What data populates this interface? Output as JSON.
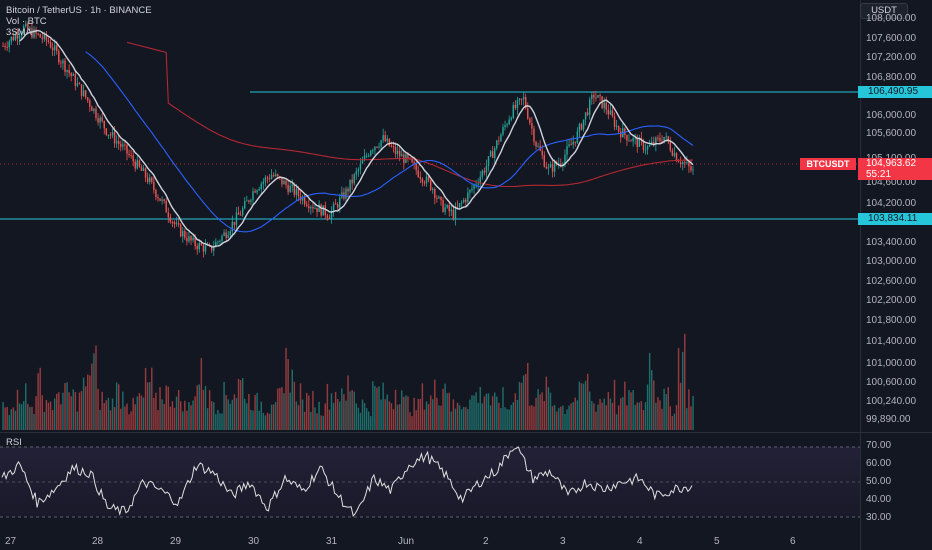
{
  "legend": {
    "symbol": "Bitcoin / TetherUS · 1h · BINANCE",
    "volume": "Vol · BTC",
    "indicator": "3SMA"
  },
  "currency_button": "USDT",
  "price_axis": [
    "108,000.00",
    "107,600.00",
    "107,200.00",
    "106,800.00",
    "106,000.00",
    "105,600.00",
    "105,100.00",
    "104,600.00",
    "104,200.00",
    "103,400.00",
    "103,000.00",
    "102,600.00",
    "102,200.00",
    "101,800.00",
    "101,400.00",
    "101,000.00",
    "100,600.00",
    "100,240.00",
    "99,890.00"
  ],
  "levels": {
    "resistance": "106,490.95",
    "support": "103,834.11"
  },
  "current": {
    "ticker": "BTCUSDT",
    "price": "104,963.62",
    "countdown": "55:21"
  },
  "rsi": {
    "label": "RSI",
    "axis": [
      "70.00",
      "60.00",
      "50.00",
      "40.00",
      "30.00"
    ]
  },
  "time_axis": [
    "27",
    "28",
    "29",
    "30",
    "31",
    "Jun",
    "2",
    "3",
    "4",
    "5",
    "6"
  ],
  "colors": {
    "up": "#26a69a",
    "down": "#ef5350",
    "level": "#26c6da",
    "sma_fast": "#d1d4dc",
    "sma_mid": "#2962ff",
    "sma_slow": "#b22833",
    "background": "#131722"
  },
  "chart_data": {
    "type": "candlestick",
    "interval": "1h",
    "ylim": [
      99890,
      108000
    ],
    "price_path": [
      [
        0,
        107800
      ],
      [
        10,
        108200
      ],
      [
        22,
        107900
      ],
      [
        32,
        107200
      ],
      [
        42,
        106500
      ],
      [
        50,
        105900
      ],
      [
        58,
        105500
      ],
      [
        70,
        104800
      ],
      [
        78,
        104200
      ],
      [
        84,
        103700
      ],
      [
        92,
        103350
      ],
      [
        100,
        103200
      ],
      [
        108,
        103600
      ],
      [
        116,
        104100
      ],
      [
        122,
        104600
      ],
      [
        130,
        104900
      ],
      [
        136,
        104700
      ],
      [
        144,
        104400
      ],
      [
        150,
        104200
      ],
      [
        158,
        104000
      ],
      [
        166,
        104500
      ],
      [
        172,
        105000
      ],
      [
        178,
        105500
      ],
      [
        184,
        105700
      ],
      [
        190,
        105400
      ],
      [
        196,
        105200
      ],
      [
        202,
        104900
      ],
      [
        208,
        104600
      ],
      [
        212,
        104200
      ],
      [
        218,
        104000
      ],
      [
        226,
        104500
      ],
      [
        234,
        105100
      ],
      [
        240,
        105700
      ],
      [
        246,
        106300
      ],
      [
        252,
        106600
      ],
      [
        258,
        105600
      ],
      [
        264,
        105000
      ],
      [
        270,
        105200
      ],
      [
        278,
        105800
      ],
      [
        286,
        106700
      ],
      [
        292,
        106400
      ],
      [
        298,
        105900
      ],
      [
        304,
        105700
      ],
      [
        312,
        105500
      ],
      [
        320,
        105750
      ],
      [
        326,
        105300
      ],
      [
        334,
        104960
      ]
    ],
    "volume_profile": [
      0.3,
      0.4,
      0.5,
      0.3,
      0.6,
      0.4,
      0.35,
      0.5,
      0.45,
      0.4,
      0.55,
      0.9,
      0.4,
      0.35,
      0.5,
      0.45,
      0.3,
      0.4,
      0.6,
      0.35,
      0.5,
      0.45,
      0.4,
      0.3,
      0.55,
      0.7,
      0.4,
      0.35,
      0.45,
      0.5,
      0.6,
      0.4,
      0.35,
      0.3,
      0.45,
      0.4,
      0.8,
      0.5,
      0.35,
      0.4,
      0.3,
      0.45,
      0.5,
      0.4,
      0.6,
      0.35,
      0.3,
      0.5,
      0.45,
      0.4,
      0.55,
      0.35,
      0.3,
      0.45,
      0.4,
      0.5,
      0.6,
      0.3,
      0.35,
      0.4,
      0.45,
      0.5,
      0.35,
      0.4,
      0.3,
      0.55,
      0.7,
      0.45,
      0.4,
      0.5,
      0.35,
      0.3,
      0.4,
      0.45,
      0.6,
      0.35,
      0.4,
      0.5,
      0.3,
      0.45,
      0.4,
      0.35,
      0.9,
      0.5,
      0.4,
      0.3,
      1.0,
      0.45,
      0.4
    ],
    "rsi_path": [
      [
        0,
        52
      ],
      [
        10,
        60
      ],
      [
        20,
        38
      ],
      [
        30,
        46
      ],
      [
        40,
        58
      ],
      [
        50,
        55
      ],
      [
        60,
        35
      ],
      [
        70,
        33
      ],
      [
        80,
        50
      ],
      [
        90,
        45
      ],
      [
        100,
        38
      ],
      [
        110,
        60
      ],
      [
        120,
        55
      ],
      [
        130,
        42
      ],
      [
        140,
        50
      ],
      [
        150,
        35
      ],
      [
        160,
        52
      ],
      [
        170,
        45
      ],
      [
        180,
        58
      ],
      [
        190,
        42
      ],
      [
        200,
        30
      ],
      [
        210,
        52
      ],
      [
        220,
        45
      ],
      [
        230,
        60
      ],
      [
        240,
        65
      ],
      [
        250,
        55
      ],
      [
        260,
        40
      ],
      [
        270,
        50
      ],
      [
        280,
        57
      ],
      [
        290,
        72
      ],
      [
        300,
        52
      ],
      [
        310,
        56
      ],
      [
        320,
        42
      ],
      [
        330,
        50
      ],
      [
        340,
        46
      ],
      [
        350,
        50
      ],
      [
        360,
        52
      ],
      [
        370,
        42
      ],
      [
        380,
        46
      ],
      [
        390,
        48
      ]
    ]
  }
}
